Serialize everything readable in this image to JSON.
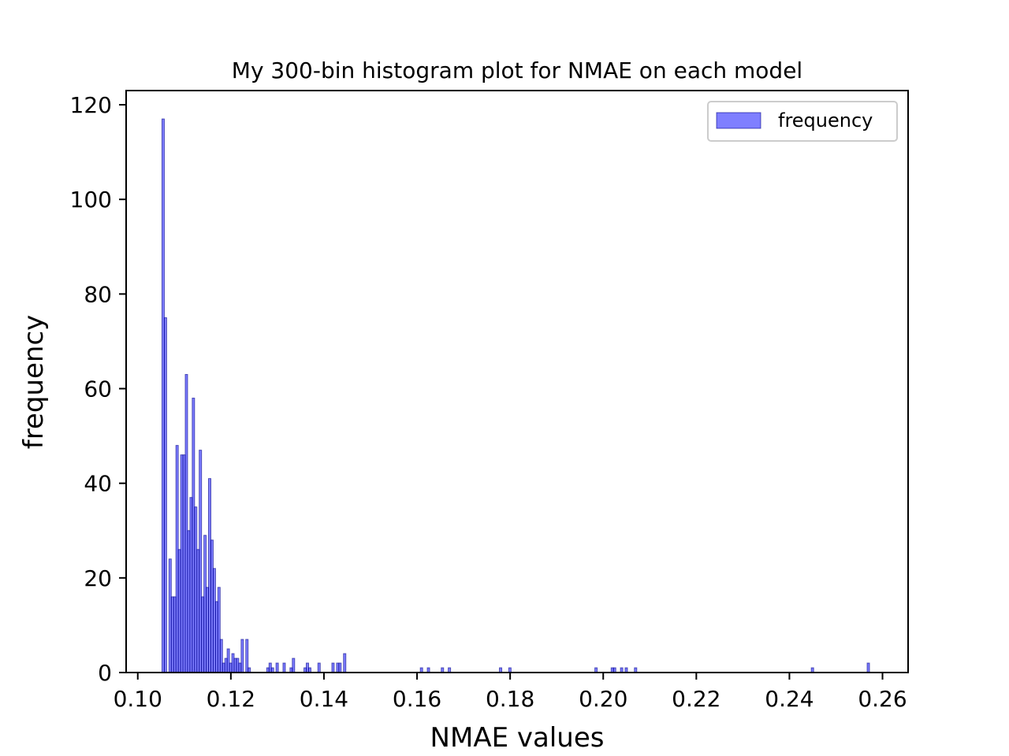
{
  "chart_data": {
    "type": "bar",
    "title": "My 300-bin histogram plot for NMAE on each model",
    "xlabel": "NMAE values",
    "ylabel": "frequency",
    "xlim": [
      0.0975,
      0.2655
    ],
    "ylim": [
      0,
      123
    ],
    "xticks": [
      0.1,
      0.12,
      0.14,
      0.16,
      0.18,
      0.2,
      0.22,
      0.24,
      0.26
    ],
    "xtick_labels": [
      "0.10",
      "0.12",
      "0.14",
      "0.16",
      "0.18",
      "0.20",
      "0.22",
      "0.24",
      "0.26"
    ],
    "yticks": [
      0,
      20,
      40,
      60,
      80,
      100,
      120
    ],
    "ytick_labels": [
      "0",
      "20",
      "40",
      "60",
      "80",
      "100",
      "120"
    ],
    "legend": {
      "position": "top-right",
      "label": "frequency"
    },
    "bin_width": 0.000506,
    "series": [
      {
        "name": "frequency",
        "bin_starts": [
          0.1052,
          0.1057,
          0.1067,
          0.1072,
          0.1077,
          0.1082,
          0.1087,
          0.1092,
          0.1097,
          0.1102,
          0.1107,
          0.1112,
          0.1117,
          0.1122,
          0.1127,
          0.1132,
          0.1137,
          0.1142,
          0.1147,
          0.1152,
          0.1157,
          0.1162,
          0.1167,
          0.1172,
          0.1177,
          0.1182,
          0.1187,
          0.1192,
          0.1197,
          0.1202,
          0.1207,
          0.1212,
          0.1217,
          0.1222,
          0.1232,
          0.1237,
          0.1277,
          0.1282,
          0.1287,
          0.1297,
          0.1312,
          0.1327,
          0.1332,
          0.1357,
          0.1362,
          0.1367,
          0.1387,
          0.1417,
          0.1427,
          0.1432,
          0.1442,
          0.1607,
          0.1622,
          0.1652,
          0.1667,
          0.1777,
          0.1797,
          0.1982,
          0.2017,
          0.2022,
          0.2037,
          0.2047,
          0.2067,
          0.2447,
          0.2567
        ],
        "values": [
          117,
          75,
          24,
          16,
          16,
          48,
          26,
          46,
          46,
          63,
          30,
          37,
          58,
          35,
          26,
          47,
          16,
          29,
          18,
          41,
          28,
          22,
          15,
          18,
          7,
          2,
          3,
          5,
          2,
          4,
          3,
          3,
          2,
          7,
          7,
          1,
          1,
          2,
          1,
          2,
          2,
          1,
          3,
          1,
          2,
          1,
          2,
          2,
          2,
          2,
          4,
          1,
          1,
          1,
          1,
          1,
          1,
          1,
          1,
          1,
          1,
          1,
          1,
          1,
          2
        ]
      }
    ]
  }
}
